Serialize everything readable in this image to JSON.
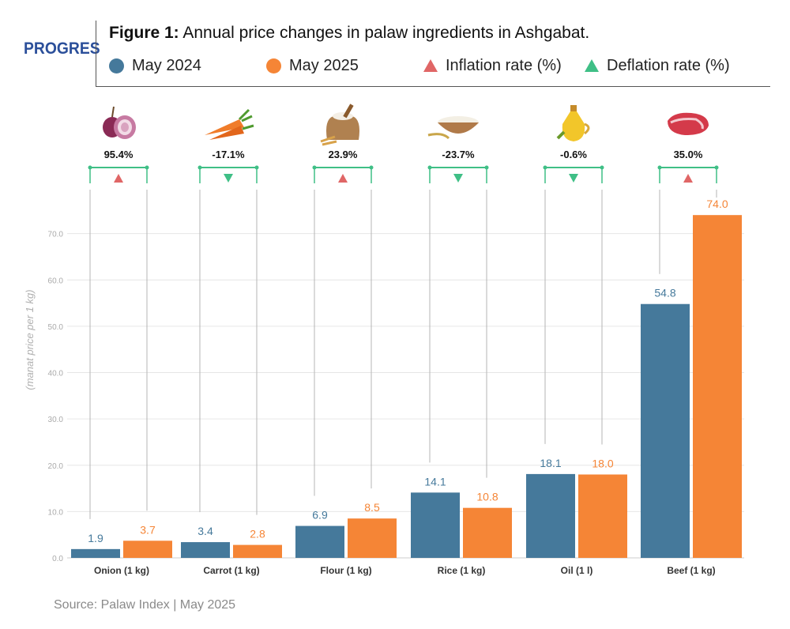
{
  "logo": "PROGRES",
  "title": {
    "bold": "Figure 1:",
    "rest": " Annual price changes in palaw ingredients in Ashgabat."
  },
  "legend": {
    "may2024": "May 2024",
    "may2025": "May 2025",
    "inflation": "Inflation rate (%)",
    "deflation": "Deflation rate (%)"
  },
  "source": "Source: Palaw Index | May 2025",
  "colors": {
    "may2024": "#45799b",
    "may2025": "#f58536",
    "inflation": "#e06666",
    "deflation": "#3fbf86",
    "connector": "#3fbf86",
    "grid": "#e6e6e6"
  },
  "icons": [
    "onion-icon",
    "carrot-icon",
    "flour-sack-icon",
    "rice-bowl-icon",
    "oil-bottle-icon",
    "beef-steak-icon"
  ],
  "chart_data": {
    "type": "bar",
    "categories": [
      "Onion (1 kg)",
      "Carrot (1 kg)",
      "Flour (1 kg)",
      "Rice (1 kg)",
      "Oil (1 l)",
      "Beef (1 kg)"
    ],
    "series": [
      {
        "name": "May 2024",
        "values": [
          1.9,
          3.4,
          6.9,
          14.1,
          18.1,
          54.8
        ],
        "labels": [
          "1.9",
          "3.4",
          "6.9",
          "14.1",
          "18.1",
          "54.8"
        ]
      },
      {
        "name": "May 2025",
        "values": [
          3.7,
          2.8,
          8.5,
          10.8,
          18.0,
          74.0
        ],
        "labels": [
          "3.7",
          "2.8",
          "8.5",
          "10.8",
          "18.0",
          "74.0"
        ]
      }
    ],
    "changes": [
      "95.4%",
      "-17.1%",
      "23.9%",
      "-23.7%",
      "-0.6%",
      "35.0%"
    ],
    "change_direction": [
      "up",
      "down",
      "up",
      "down",
      "down",
      "up"
    ],
    "ylabel": "(manat price per 1 kg)",
    "yticks": [
      "0.0",
      "10.0",
      "20.0",
      "30.0",
      "40.0",
      "50.0",
      "60.0",
      "70.0"
    ],
    "ylim": [
      0,
      80
    ],
    "grid": true
  }
}
